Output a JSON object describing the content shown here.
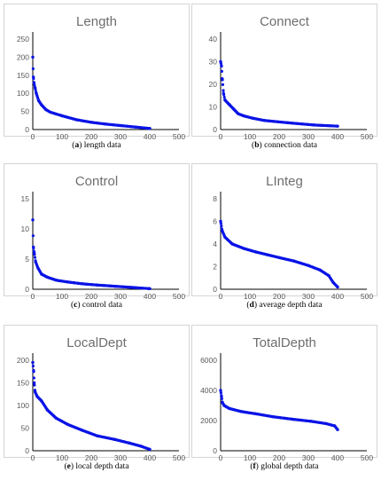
{
  "colors": {
    "series": "#0a14e6",
    "axis": "#000000",
    "tick_text": "#595959",
    "frame": "#d4d4d4"
  },
  "chart_data": [
    {
      "type": "scatter",
      "title": "Length",
      "caption_tag": "(a)",
      "caption_text": "length data",
      "xlim": [
        0,
        500
      ],
      "ylim": [
        0,
        250
      ],
      "xticks": [
        0,
        100,
        200,
        300,
        400,
        500
      ],
      "yticks": [
        0,
        50,
        100,
        150,
        200,
        250
      ],
      "curve": [
        [
          0,
          200
        ],
        [
          2,
          145
        ],
        [
          4,
          130
        ],
        [
          8,
          115
        ],
        [
          12,
          100
        ],
        [
          20,
          80
        ],
        [
          30,
          68
        ],
        [
          45,
          55
        ],
        [
          60,
          48
        ],
        [
          100,
          38
        ],
        [
          150,
          27
        ],
        [
          200,
          20
        ],
        [
          250,
          15
        ],
        [
          300,
          11
        ],
        [
          350,
          7
        ],
        [
          400,
          3
        ]
      ]
    },
    {
      "type": "scatter",
      "title": "Connect",
      "caption_tag": "(b)",
      "caption_text": "connection data",
      "xlim": [
        0,
        500
      ],
      "ylim": [
        0,
        40
      ],
      "xticks": [
        0,
        100,
        200,
        300,
        400,
        500
      ],
      "yticks": [
        0,
        10,
        20,
        30,
        40
      ],
      "curve": [
        [
          0,
          30
        ],
        [
          3,
          28
        ],
        [
          6,
          22
        ],
        [
          10,
          16
        ],
        [
          15,
          13
        ],
        [
          30,
          11
        ],
        [
          45,
          9
        ],
        [
          60,
          7
        ],
        [
          80,
          6
        ],
        [
          110,
          5
        ],
        [
          150,
          4
        ],
        [
          230,
          3
        ],
        [
          320,
          2
        ],
        [
          400,
          1.5
        ]
      ]
    },
    {
      "type": "scatter",
      "title": "Control",
      "caption_tag": "(c)",
      "caption_text": "control data",
      "xlim": [
        0,
        500
      ],
      "ylim": [
        0,
        15
      ],
      "xticks": [
        0,
        100,
        200,
        300,
        400,
        500
      ],
      "yticks": [
        0,
        5,
        10,
        15
      ],
      "curve": [
        [
          0,
          11.5
        ],
        [
          2,
          7
        ],
        [
          5,
          6
        ],
        [
          10,
          4.5
        ],
        [
          18,
          3.5
        ],
        [
          30,
          2.5
        ],
        [
          50,
          2
        ],
        [
          80,
          1.5
        ],
        [
          120,
          1.2
        ],
        [
          170,
          0.9
        ],
        [
          220,
          0.7
        ],
        [
          280,
          0.5
        ],
        [
          340,
          0.3
        ],
        [
          400,
          0.1
        ]
      ]
    },
    {
      "type": "scatter",
      "title": "LInteg",
      "caption_tag": "(d)",
      "caption_text": "average depth data",
      "xlim": [
        0,
        500
      ],
      "ylim": [
        0,
        8
      ],
      "xticks": [
        0,
        100,
        200,
        300,
        400,
        500
      ],
      "yticks": [
        0,
        2,
        4,
        6,
        8
      ],
      "curve": [
        [
          0,
          6
        ],
        [
          5,
          5.2
        ],
        [
          15,
          4.6
        ],
        [
          40,
          4
        ],
        [
          80,
          3.6
        ],
        [
          120,
          3.3
        ],
        [
          160,
          3.05
        ],
        [
          200,
          2.8
        ],
        [
          250,
          2.5
        ],
        [
          300,
          2.1
        ],
        [
          340,
          1.7
        ],
        [
          370,
          1.2
        ],
        [
          385,
          0.6
        ],
        [
          400,
          0.2
        ]
      ]
    },
    {
      "type": "scatter",
      "title": "LocalDept",
      "caption_tag": "(e)",
      "caption_text": "local depth data",
      "xlim": [
        0,
        500
      ],
      "ylim": [
        0,
        200
      ],
      "xticks": [
        0,
        100,
        200,
        300,
        400,
        500
      ],
      "yticks": [
        0,
        50,
        100,
        150,
        200
      ],
      "curve": [
        [
          0,
          195
        ],
        [
          3,
          175
        ],
        [
          5,
          150
        ],
        [
          8,
          130
        ],
        [
          15,
          120
        ],
        [
          30,
          110
        ],
        [
          50,
          90
        ],
        [
          80,
          72
        ],
        [
          120,
          58
        ],
        [
          170,
          45
        ],
        [
          220,
          33
        ],
        [
          280,
          25
        ],
        [
          330,
          17
        ],
        [
          370,
          10
        ],
        [
          400,
          3
        ]
      ]
    },
    {
      "type": "scatter",
      "title": "TotalDepth",
      "caption_tag": "(f)",
      "caption_text": "global depth data",
      "xlim": [
        0,
        500
      ],
      "ylim": [
        0,
        6000
      ],
      "xticks": [
        0,
        100,
        200,
        300,
        400,
        500
      ],
      "yticks": [
        0,
        2000,
        4000,
        6000
      ],
      "curve": [
        [
          0,
          4000
        ],
        [
          3,
          3600
        ],
        [
          6,
          3200
        ],
        [
          12,
          3000
        ],
        [
          30,
          2800
        ],
        [
          70,
          2600
        ],
        [
          120,
          2450
        ],
        [
          180,
          2250
        ],
        [
          250,
          2080
        ],
        [
          310,
          1950
        ],
        [
          360,
          1800
        ],
        [
          390,
          1650
        ],
        [
          400,
          1400
        ]
      ]
    }
  ]
}
